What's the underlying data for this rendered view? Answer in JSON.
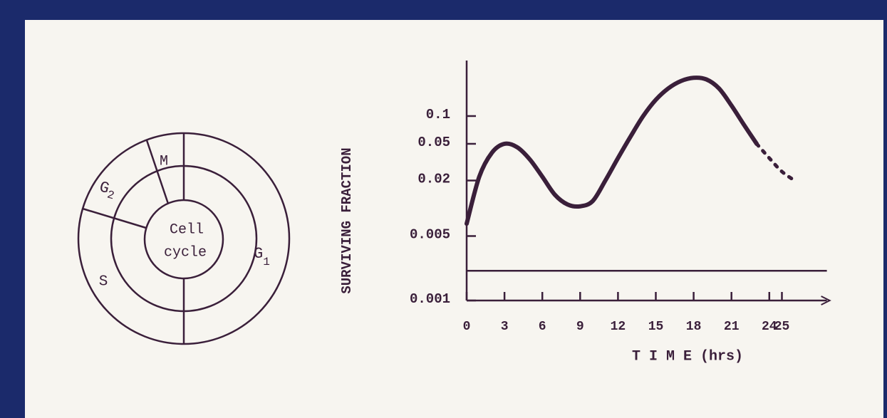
{
  "cell_cycle": {
    "center": [
      "Cell",
      "cycle"
    ],
    "phases": [
      {
        "name": "M"
      },
      {
        "name": "G",
        "sub": "2"
      },
      {
        "name": "S"
      },
      {
        "name": "G",
        "sub": "1"
      }
    ]
  },
  "chart_data": {
    "type": "line",
    "y_label": "SURVIVING FRACTION",
    "x_label": "T I M E (hrs)",
    "log_y": true,
    "color": "#3a1f3a",
    "xlim": [
      0,
      28
    ],
    "xticks": [
      0,
      3,
      6,
      9,
      12,
      15,
      18,
      21,
      24,
      25
    ],
    "ylim": [
      0.001,
      0.4
    ],
    "yticks": [
      0.1,
      0.05,
      0.02,
      0.005,
      0.001
    ],
    "hline": 0.0021,
    "series": [
      {
        "dash": false,
        "x": [
          0,
          1,
          2,
          3,
          4,
          5,
          6,
          7,
          8,
          9,
          10,
          11,
          12,
          13,
          14,
          15,
          16,
          17,
          18,
          19,
          20,
          21,
          22,
          23
        ],
        "values": [
          0.0068,
          0.022,
          0.04,
          0.05,
          0.046,
          0.034,
          0.022,
          0.014,
          0.011,
          0.0105,
          0.012,
          0.02,
          0.035,
          0.06,
          0.1,
          0.15,
          0.2,
          0.24,
          0.26,
          0.25,
          0.2,
          0.13,
          0.08,
          0.05
        ]
      },
      {
        "dash": true,
        "x": [
          23,
          24,
          25,
          26
        ],
        "values": [
          0.05,
          0.035,
          0.025,
          0.02
        ]
      }
    ]
  }
}
